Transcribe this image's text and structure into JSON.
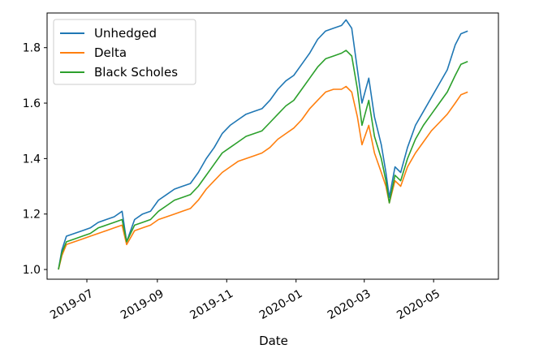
{
  "chart_data": {
    "type": "line",
    "xlabel": "Date",
    "ylabel": "",
    "xlim": [
      "2019-05-27",
      "2020-06-27"
    ],
    "ylim": [
      0.965,
      1.925
    ],
    "grid": false,
    "legend_position": "top-left",
    "x_ticks": [
      {
        "date": "2019-07-01",
        "label": "2019-07"
      },
      {
        "date": "2019-09-01",
        "label": "2019-09"
      },
      {
        "date": "2019-11-01",
        "label": "2019-11"
      },
      {
        "date": "2020-01-01",
        "label": "2020-01"
      },
      {
        "date": "2020-03-01",
        "label": "2020-03"
      },
      {
        "date": "2020-05-01",
        "label": "2020-05"
      }
    ],
    "y_ticks": [
      {
        "value": 1.0,
        "label": "1.0"
      },
      {
        "value": 1.2,
        "label": "1.2"
      },
      {
        "value": 1.4,
        "label": "1.4"
      },
      {
        "value": 1.6,
        "label": "1.6"
      },
      {
        "value": 1.8,
        "label": "1.8"
      }
    ],
    "series": [
      {
        "name": "Unhedged",
        "color": "#1f77b4",
        "points": [
          [
            "2019-06-06",
            1.0
          ],
          [
            "2019-06-09",
            1.07
          ],
          [
            "2019-06-13",
            1.12
          ],
          [
            "2019-06-20",
            1.13
          ],
          [
            "2019-06-27",
            1.14
          ],
          [
            "2019-07-04",
            1.15
          ],
          [
            "2019-07-11",
            1.17
          ],
          [
            "2019-07-18",
            1.18
          ],
          [
            "2019-07-25",
            1.19
          ],
          [
            "2019-08-01",
            1.21
          ],
          [
            "2019-08-05",
            1.1
          ],
          [
            "2019-08-12",
            1.18
          ],
          [
            "2019-08-19",
            1.2
          ],
          [
            "2019-08-26",
            1.21
          ],
          [
            "2019-09-02",
            1.25
          ],
          [
            "2019-09-09",
            1.27
          ],
          [
            "2019-09-16",
            1.29
          ],
          [
            "2019-09-23",
            1.3
          ],
          [
            "2019-09-30",
            1.31
          ],
          [
            "2019-10-07",
            1.35
          ],
          [
            "2019-10-14",
            1.4
          ],
          [
            "2019-10-21",
            1.44
          ],
          [
            "2019-10-28",
            1.49
          ],
          [
            "2019-11-04",
            1.52
          ],
          [
            "2019-11-11",
            1.54
          ],
          [
            "2019-11-18",
            1.56
          ],
          [
            "2019-11-25",
            1.57
          ],
          [
            "2019-12-02",
            1.58
          ],
          [
            "2019-12-09",
            1.61
          ],
          [
            "2019-12-16",
            1.65
          ],
          [
            "2019-12-23",
            1.68
          ],
          [
            "2019-12-30",
            1.7
          ],
          [
            "2020-01-06",
            1.74
          ],
          [
            "2020-01-13",
            1.78
          ],
          [
            "2020-01-20",
            1.83
          ],
          [
            "2020-01-27",
            1.86
          ],
          [
            "2020-02-03",
            1.87
          ],
          [
            "2020-02-10",
            1.88
          ],
          [
            "2020-02-14",
            1.9
          ],
          [
            "2020-02-19",
            1.87
          ],
          [
            "2020-02-24",
            1.72
          ],
          [
            "2020-02-28",
            1.6
          ],
          [
            "2020-03-05",
            1.69
          ],
          [
            "2020-03-10",
            1.55
          ],
          [
            "2020-03-16",
            1.45
          ],
          [
            "2020-03-20",
            1.35
          ],
          [
            "2020-03-23",
            1.26
          ],
          [
            "2020-03-28",
            1.37
          ],
          [
            "2020-04-02",
            1.35
          ],
          [
            "2020-04-08",
            1.44
          ],
          [
            "2020-04-15",
            1.52
          ],
          [
            "2020-04-22",
            1.57
          ],
          [
            "2020-04-29",
            1.62
          ],
          [
            "2020-05-06",
            1.67
          ],
          [
            "2020-05-13",
            1.72
          ],
          [
            "2020-05-20",
            1.81
          ],
          [
            "2020-05-25",
            1.85
          ],
          [
            "2020-05-31",
            1.86
          ]
        ]
      },
      {
        "name": "Delta",
        "color": "#ff7f0e",
        "points": [
          [
            "2019-06-06",
            1.0
          ],
          [
            "2019-06-09",
            1.05
          ],
          [
            "2019-06-13",
            1.09
          ],
          [
            "2019-06-20",
            1.1
          ],
          [
            "2019-06-27",
            1.11
          ],
          [
            "2019-07-04",
            1.12
          ],
          [
            "2019-07-11",
            1.13
          ],
          [
            "2019-07-18",
            1.14
          ],
          [
            "2019-07-25",
            1.15
          ],
          [
            "2019-08-01",
            1.16
          ],
          [
            "2019-08-05",
            1.09
          ],
          [
            "2019-08-12",
            1.14
          ],
          [
            "2019-08-19",
            1.15
          ],
          [
            "2019-08-26",
            1.16
          ],
          [
            "2019-09-02",
            1.18
          ],
          [
            "2019-09-09",
            1.19
          ],
          [
            "2019-09-16",
            1.2
          ],
          [
            "2019-09-23",
            1.21
          ],
          [
            "2019-09-30",
            1.22
          ],
          [
            "2019-10-07",
            1.25
          ],
          [
            "2019-10-14",
            1.29
          ],
          [
            "2019-10-21",
            1.32
          ],
          [
            "2019-10-28",
            1.35
          ],
          [
            "2019-11-04",
            1.37
          ],
          [
            "2019-11-11",
            1.39
          ],
          [
            "2019-11-18",
            1.4
          ],
          [
            "2019-11-25",
            1.41
          ],
          [
            "2019-12-02",
            1.42
          ],
          [
            "2019-12-09",
            1.44
          ],
          [
            "2019-12-16",
            1.47
          ],
          [
            "2019-12-23",
            1.49
          ],
          [
            "2019-12-30",
            1.51
          ],
          [
            "2020-01-06",
            1.54
          ],
          [
            "2020-01-13",
            1.58
          ],
          [
            "2020-01-20",
            1.61
          ],
          [
            "2020-01-27",
            1.64
          ],
          [
            "2020-02-03",
            1.65
          ],
          [
            "2020-02-10",
            1.65
          ],
          [
            "2020-02-14",
            1.66
          ],
          [
            "2020-02-19",
            1.64
          ],
          [
            "2020-02-24",
            1.55
          ],
          [
            "2020-02-28",
            1.45
          ],
          [
            "2020-03-05",
            1.52
          ],
          [
            "2020-03-10",
            1.42
          ],
          [
            "2020-03-16",
            1.35
          ],
          [
            "2020-03-20",
            1.3
          ],
          [
            "2020-03-23",
            1.24
          ],
          [
            "2020-03-28",
            1.32
          ],
          [
            "2020-04-02",
            1.3
          ],
          [
            "2020-04-08",
            1.37
          ],
          [
            "2020-04-15",
            1.42
          ],
          [
            "2020-04-22",
            1.46
          ],
          [
            "2020-04-29",
            1.5
          ],
          [
            "2020-05-06",
            1.53
          ],
          [
            "2020-05-13",
            1.56
          ],
          [
            "2020-05-20",
            1.6
          ],
          [
            "2020-05-25",
            1.63
          ],
          [
            "2020-05-31",
            1.64
          ]
        ]
      },
      {
        "name": "Black Scholes",
        "color": "#2ca02c",
        "points": [
          [
            "2019-06-06",
            1.0
          ],
          [
            "2019-06-09",
            1.06
          ],
          [
            "2019-06-13",
            1.1
          ],
          [
            "2019-06-20",
            1.11
          ],
          [
            "2019-06-27",
            1.12
          ],
          [
            "2019-07-04",
            1.13
          ],
          [
            "2019-07-11",
            1.15
          ],
          [
            "2019-07-18",
            1.16
          ],
          [
            "2019-07-25",
            1.17
          ],
          [
            "2019-08-01",
            1.18
          ],
          [
            "2019-08-05",
            1.1
          ],
          [
            "2019-08-12",
            1.16
          ],
          [
            "2019-08-19",
            1.17
          ],
          [
            "2019-08-26",
            1.18
          ],
          [
            "2019-09-02",
            1.21
          ],
          [
            "2019-09-09",
            1.23
          ],
          [
            "2019-09-16",
            1.25
          ],
          [
            "2019-09-23",
            1.26
          ],
          [
            "2019-09-30",
            1.27
          ],
          [
            "2019-10-07",
            1.3
          ],
          [
            "2019-10-14",
            1.34
          ],
          [
            "2019-10-21",
            1.38
          ],
          [
            "2019-10-28",
            1.42
          ],
          [
            "2019-11-04",
            1.44
          ],
          [
            "2019-11-11",
            1.46
          ],
          [
            "2019-11-18",
            1.48
          ],
          [
            "2019-11-25",
            1.49
          ],
          [
            "2019-12-02",
            1.5
          ],
          [
            "2019-12-09",
            1.53
          ],
          [
            "2019-12-16",
            1.56
          ],
          [
            "2019-12-23",
            1.59
          ],
          [
            "2019-12-30",
            1.61
          ],
          [
            "2020-01-06",
            1.65
          ],
          [
            "2020-01-13",
            1.69
          ],
          [
            "2020-01-20",
            1.73
          ],
          [
            "2020-01-27",
            1.76
          ],
          [
            "2020-02-03",
            1.77
          ],
          [
            "2020-02-10",
            1.78
          ],
          [
            "2020-02-14",
            1.79
          ],
          [
            "2020-02-19",
            1.77
          ],
          [
            "2020-02-24",
            1.65
          ],
          [
            "2020-02-28",
            1.52
          ],
          [
            "2020-03-05",
            1.61
          ],
          [
            "2020-03-10",
            1.48
          ],
          [
            "2020-03-16",
            1.4
          ],
          [
            "2020-03-20",
            1.32
          ],
          [
            "2020-03-23",
            1.24
          ],
          [
            "2020-03-28",
            1.34
          ],
          [
            "2020-04-02",
            1.32
          ],
          [
            "2020-04-08",
            1.4
          ],
          [
            "2020-04-15",
            1.47
          ],
          [
            "2020-04-22",
            1.52
          ],
          [
            "2020-04-29",
            1.56
          ],
          [
            "2020-05-06",
            1.6
          ],
          [
            "2020-05-13",
            1.64
          ],
          [
            "2020-05-20",
            1.7
          ],
          [
            "2020-05-25",
            1.74
          ],
          [
            "2020-05-31",
            1.75
          ]
        ]
      }
    ]
  }
}
